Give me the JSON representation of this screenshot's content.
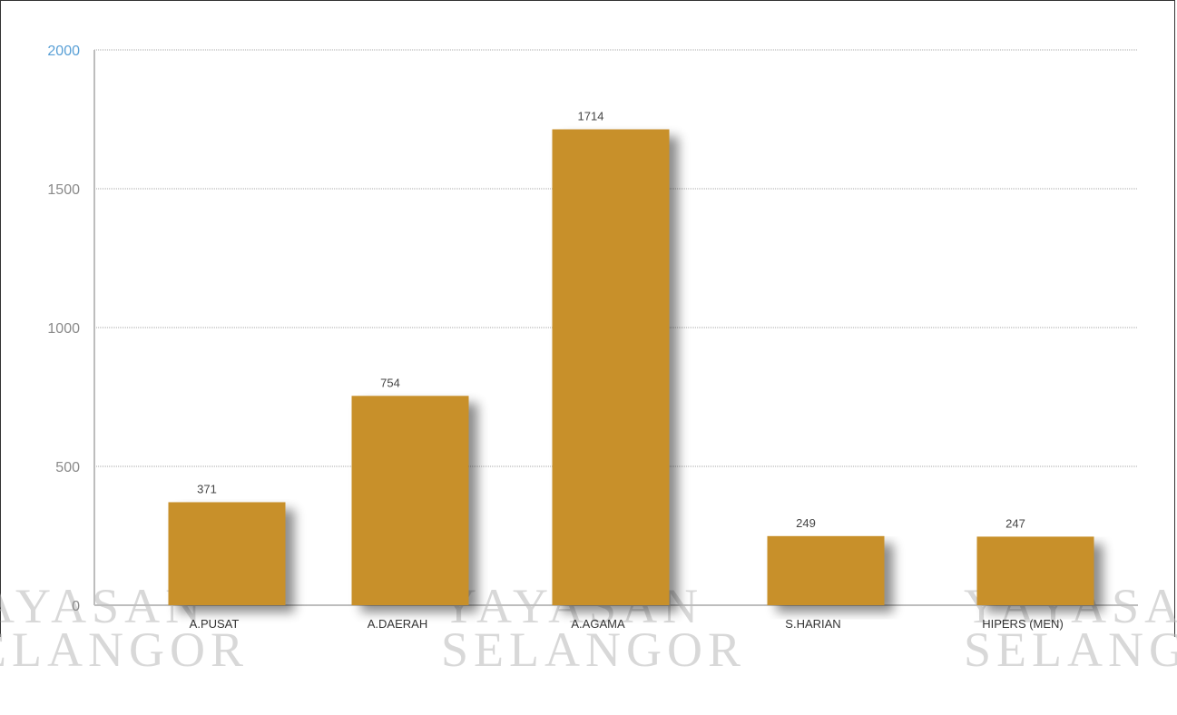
{
  "chart_data": {
    "type": "bar",
    "categories": [
      "A.PUSAT",
      "A.DAERAH",
      "A.AGAMA",
      "S.HARIAN",
      "HIPERS (MEN)"
    ],
    "values": [
      371,
      754,
      1714,
      249,
      247
    ],
    "yticks": [
      0,
      500,
      1000,
      1500,
      2000
    ],
    "ylim": [
      0,
      2000
    ],
    "grid": true,
    "bar_color": "#c8902b",
    "axis_color": "#bdbdbd",
    "grid_color": "#aaaaaa",
    "top_tick_color": "#5aa0d6"
  },
  "watermark": {
    "line1": "YAYASAN",
    "line2": "SELANGOR",
    "color": "#b9b9b9"
  }
}
